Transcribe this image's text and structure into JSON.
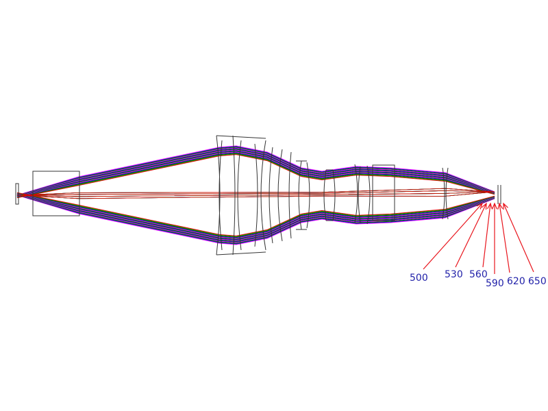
{
  "wavelength_labels": [
    "500",
    "530",
    "560",
    "590",
    "620",
    "650"
  ]
}
